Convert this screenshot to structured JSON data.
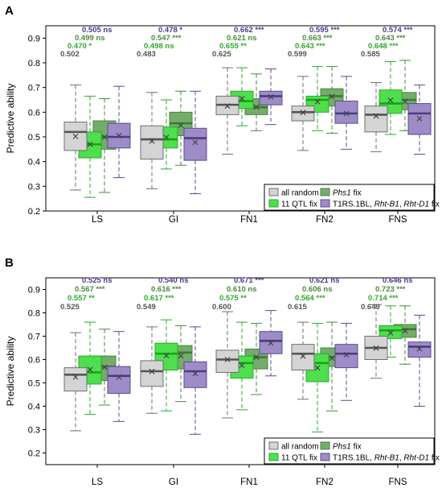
{
  "legend": [
    {
      "key": "all_random",
      "label_parts": [
        {
          "t": "all random",
          "i": false
        }
      ],
      "color": "#d4d4d4",
      "stroke": "#6f6f6f",
      "median": "#555555"
    },
    {
      "key": "qtl11",
      "label_parts": [
        {
          "t": "11 QTL fix",
          "i": false
        }
      ],
      "color": "#4ede4e",
      "stroke": "#27ae27",
      "median": "#16a516"
    },
    {
      "key": "phs1",
      "label_parts": [
        {
          "t": "Phs1",
          "i": true
        },
        {
          "t": " fix",
          "i": false
        }
      ],
      "color": "#74ac6b",
      "stroke": "#4b8541",
      "median": "#3d7a36"
    },
    {
      "key": "t1rs",
      "label_parts": [
        {
          "t": "T1RS.1BL, ",
          "i": false
        },
        {
          "t": "Rht-B1",
          "i": true
        },
        {
          "t": ", ",
          "i": false
        },
        {
          "t": "Rht-D1",
          "i": true
        },
        {
          "t": " fix",
          "i": false
        }
      ],
      "color": "#9d8cc8",
      "stroke": "#5a4b8c",
      "median": "#4a3c80"
    }
  ],
  "annotation_colors": [
    "#555555",
    "#2ea82e",
    "#4b8b3a",
    "#4a3d8f"
  ],
  "chart_data": [
    {
      "panel": "A",
      "type": "boxplot",
      "ylabel": "Predictive ability",
      "ylim": [
        0.2,
        0.95
      ],
      "yticks": [
        0.2,
        0.3,
        0.4,
        0.5,
        0.6,
        0.7,
        0.8,
        0.9
      ],
      "legend_position": "bottom-right",
      "categories": [
        "LS",
        "GI",
        "FN1",
        "FN2",
        "FNS"
      ],
      "boxes": [
        [
          {
            "wl": 0.285,
            "q1": 0.445,
            "med": 0.52,
            "q3": 0.56,
            "wh": 0.71,
            "mean": 0.502
          },
          {
            "wl": 0.255,
            "q1": 0.415,
            "med": 0.47,
            "q3": 0.52,
            "wh": 0.665,
            "mean": 0.47
          },
          {
            "wl": 0.275,
            "q1": 0.45,
            "med": 0.5,
            "q3": 0.565,
            "wh": 0.655,
            "mean": 0.499
          },
          {
            "wl": 0.335,
            "q1": 0.455,
            "med": 0.5,
            "q3": 0.555,
            "wh": 0.705,
            "mean": 0.505
          }
        ],
        [
          {
            "wl": 0.29,
            "q1": 0.41,
            "med": 0.49,
            "q3": 0.545,
            "wh": 0.68,
            "mean": 0.483
          },
          {
            "wl": 0.37,
            "q1": 0.455,
            "med": 0.49,
            "q3": 0.54,
            "wh": 0.65,
            "mean": 0.498
          },
          {
            "wl": 0.385,
            "q1": 0.505,
            "med": 0.555,
            "q3": 0.6,
            "wh": 0.685,
            "mean": 0.547
          },
          {
            "wl": 0.27,
            "q1": 0.405,
            "med": 0.495,
            "q3": 0.535,
            "wh": 0.685,
            "mean": 0.478
          }
        ],
        [
          {
            "wl": 0.43,
            "q1": 0.59,
            "med": 0.63,
            "q3": 0.665,
            "wh": 0.78,
            "mean": 0.625
          },
          {
            "wl": 0.545,
            "q1": 0.615,
            "med": 0.645,
            "q3": 0.685,
            "wh": 0.78,
            "mean": 0.655
          },
          {
            "wl": 0.525,
            "q1": 0.59,
            "med": 0.62,
            "q3": 0.655,
            "wh": 0.755,
            "mean": 0.621
          },
          {
            "wl": 0.55,
            "q1": 0.63,
            "med": 0.665,
            "q3": 0.685,
            "wh": 0.775,
            "mean": 0.662
          }
        ],
        [
          {
            "wl": 0.445,
            "q1": 0.565,
            "med": 0.6,
            "q3": 0.625,
            "wh": 0.745,
            "mean": 0.599
          },
          {
            "wl": 0.525,
            "q1": 0.6,
            "med": 0.65,
            "q3": 0.665,
            "wh": 0.785,
            "mean": 0.643
          },
          {
            "wl": 0.515,
            "q1": 0.625,
            "med": 0.665,
            "q3": 0.695,
            "wh": 0.785,
            "mean": 0.663
          },
          {
            "wl": 0.45,
            "q1": 0.555,
            "med": 0.595,
            "q3": 0.645,
            "wh": 0.745,
            "mean": 0.595
          }
        ],
        [
          {
            "wl": 0.44,
            "q1": 0.52,
            "med": 0.59,
            "q3": 0.625,
            "wh": 0.72,
            "mean": 0.585
          },
          {
            "wl": 0.51,
            "q1": 0.595,
            "med": 0.635,
            "q3": 0.69,
            "wh": 0.805,
            "mean": 0.648
          },
          {
            "wl": 0.525,
            "q1": 0.61,
            "med": 0.65,
            "q3": 0.68,
            "wh": 0.81,
            "mean": 0.643
          },
          {
            "wl": 0.43,
            "q1": 0.51,
            "med": 0.595,
            "q3": 0.635,
            "wh": 0.71,
            "mean": 0.574
          }
        ]
      ],
      "annotations": [
        [
          "0.502",
          "0.470 *",
          "0.499 ns",
          "0.505 ns"
        ],
        [
          "0.483",
          "0.498 ns",
          "0.547 ***",
          "0.478 *"
        ],
        [
          "0.625",
          "0.655 **",
          "0.621 ns",
          "0.662 ***"
        ],
        [
          "0.599",
          "0.643 ***",
          "0.663 ***",
          "0.595 ***"
        ],
        [
          "0.585",
          "0.648 ***",
          "0.643 ***",
          "0.574 ***"
        ]
      ]
    },
    {
      "panel": "B",
      "type": "boxplot",
      "ylabel": "Predictive ability",
      "ylim": [
        0.15,
        0.95
      ],
      "yticks": [
        0.2,
        0.3,
        0.4,
        0.5,
        0.6,
        0.7,
        0.8,
        0.9
      ],
      "legend_position": "bottom-right",
      "categories": [
        "LS",
        "GI",
        "FN1",
        "FN2",
        "FNS"
      ],
      "boxes": [
        [
          {
            "wl": 0.295,
            "q1": 0.465,
            "med": 0.535,
            "q3": 0.565,
            "wh": 0.715,
            "mean": 0.525
          },
          {
            "wl": 0.365,
            "q1": 0.495,
            "med": 0.545,
            "q3": 0.615,
            "wh": 0.76,
            "mean": 0.557
          },
          {
            "wl": 0.405,
            "q1": 0.51,
            "med": 0.57,
            "q3": 0.615,
            "wh": 0.73,
            "mean": 0.567
          },
          {
            "wl": 0.335,
            "q1": 0.455,
            "med": 0.53,
            "q3": 0.57,
            "wh": 0.72,
            "mean": 0.525
          }
        ],
        [
          {
            "wl": 0.37,
            "q1": 0.485,
            "med": 0.55,
            "q3": 0.595,
            "wh": 0.74,
            "mean": 0.549
          },
          {
            "wl": 0.38,
            "q1": 0.555,
            "med": 0.625,
            "q3": 0.67,
            "wh": 0.77,
            "mean": 0.617
          },
          {
            "wl": 0.42,
            "q1": 0.56,
            "med": 0.63,
            "q3": 0.66,
            "wh": 0.745,
            "mean": 0.616
          },
          {
            "wl": 0.28,
            "q1": 0.48,
            "med": 0.55,
            "q3": 0.59,
            "wh": 0.74,
            "mean": 0.54
          }
        ],
        [
          {
            "wl": 0.35,
            "q1": 0.545,
            "med": 0.6,
            "q3": 0.64,
            "wh": 0.805,
            "mean": 0.6
          },
          {
            "wl": 0.385,
            "q1": 0.52,
            "med": 0.585,
            "q3": 0.615,
            "wh": 0.76,
            "mean": 0.575
          },
          {
            "wl": 0.45,
            "q1": 0.56,
            "med": 0.61,
            "q3": 0.645,
            "wh": 0.755,
            "mean": 0.61
          },
          {
            "wl": 0.53,
            "q1": 0.625,
            "med": 0.68,
            "q3": 0.72,
            "wh": 0.81,
            "mean": 0.671
          }
        ],
        [
          {
            "wl": 0.43,
            "q1": 0.555,
            "med": 0.625,
            "q3": 0.665,
            "wh": 0.76,
            "mean": 0.615
          },
          {
            "wl": 0.29,
            "q1": 0.505,
            "med": 0.585,
            "q3": 0.625,
            "wh": 0.755,
            "mean": 0.564
          },
          {
            "wl": 0.38,
            "q1": 0.57,
            "med": 0.61,
            "q3": 0.65,
            "wh": 0.76,
            "mean": 0.606
          },
          {
            "wl": 0.425,
            "q1": 0.565,
            "med": 0.625,
            "q3": 0.665,
            "wh": 0.755,
            "mean": 0.621
          }
        ],
        [
          {
            "wl": 0.52,
            "q1": 0.6,
            "med": 0.65,
            "q3": 0.7,
            "wh": 0.835,
            "mean": 0.649
          },
          {
            "wl": 0.61,
            "q1": 0.69,
            "med": 0.725,
            "q3": 0.745,
            "wh": 0.83,
            "mean": 0.714
          },
          {
            "wl": 0.58,
            "q1": 0.695,
            "med": 0.73,
            "q3": 0.75,
            "wh": 0.83,
            "mean": 0.723
          },
          {
            "wl": 0.4,
            "q1": 0.61,
            "med": 0.655,
            "q3": 0.675,
            "wh": 0.79,
            "mean": 0.646
          }
        ]
      ],
      "annotations": [
        [
          "0.525",
          "0.557 **",
          "0.567 ***",
          "0.525 ns"
        ],
        [
          "0.549",
          "0.617 ***",
          "0.616 ***",
          "0.540 ns"
        ],
        [
          "0.600",
          "0.575 **",
          "0.610 ns",
          "0.671 ***"
        ],
        [
          "0.615",
          "0.564 ***",
          "0.606 ns",
          "0.621 ns"
        ],
        [
          "0.649",
          "0.714 ***",
          "0.723 ***",
          "0.646 ns"
        ]
      ]
    }
  ]
}
